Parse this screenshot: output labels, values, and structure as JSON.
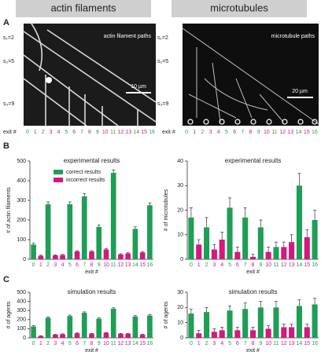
{
  "headers": [
    "actin filaments",
    "microtubules"
  ],
  "panel_labels": [
    "A",
    "B",
    "C"
  ],
  "images": [
    {
      "caption": "actin filament paths",
      "scale": "10 µm",
      "labels": [
        "s₁=2",
        "s₂=5",
        "s₃=9"
      ]
    },
    {
      "caption": "microtubule paths",
      "scale": "20 µm",
      "labels": [
        "s₁=2",
        "s₂=5",
        "s₃=9"
      ]
    }
  ],
  "exit_row": {
    "label": "exit #",
    "numbers": [
      "0",
      "1",
      "2",
      "3",
      "4",
      "5",
      "6",
      "7",
      "8",
      "9",
      "10",
      "11",
      "12",
      "13",
      "14",
      "15",
      "16"
    ]
  },
  "chart_data": [
    {
      "type": "bar",
      "title": "experimental results",
      "ylabel": "# of actin filaments",
      "xlabel": "exit #",
      "categories": [
        "0",
        "1",
        "2",
        "3",
        "4",
        "5",
        "6",
        "7",
        "8",
        "9",
        "10",
        "11",
        "12",
        "13",
        "14",
        "15",
        "16"
      ],
      "ylim": [
        0,
        500
      ],
      "yticks": [
        0,
        100,
        200,
        300,
        400,
        500
      ],
      "legend": "upper left",
      "series": [
        {
          "name": "correct results",
          "color": "#1f9e55",
          "values": [
            75,
            null,
            280,
            null,
            null,
            280,
            null,
            320,
            null,
            165,
            null,
            440,
            null,
            null,
            155,
            null,
            275
          ],
          "errors": [
            8,
            null,
            12,
            null,
            null,
            12,
            null,
            15,
            null,
            10,
            null,
            15,
            null,
            null,
            10,
            null,
            12
          ]
        },
        {
          "name": "incorrect results",
          "color": "#d4187e",
          "values": [
            null,
            18,
            null,
            20,
            22,
            null,
            40,
            null,
            40,
            null,
            50,
            null,
            25,
            30,
            null,
            35,
            null
          ],
          "errors": [
            null,
            3,
            null,
            3,
            3,
            null,
            4,
            null,
            4,
            null,
            5,
            null,
            3,
            4,
            null,
            4,
            null
          ]
        }
      ]
    },
    {
      "type": "bar",
      "title": "experimental results",
      "ylabel": "# of microtubules",
      "xlabel": "exit #",
      "categories": [
        "0",
        "1",
        "2",
        "3",
        "4",
        "5",
        "6",
        "7",
        "8",
        "9",
        "10",
        "11",
        "12",
        "13",
        "14",
        "15",
        "16"
      ],
      "ylim": [
        0,
        40
      ],
      "yticks": [
        0,
        10,
        20,
        30,
        40
      ],
      "series": [
        {
          "color": "#1f9e55",
          "values": [
            17,
            null,
            13,
            null,
            null,
            21,
            null,
            17,
            null,
            13,
            null,
            5,
            null,
            null,
            30,
            null,
            16
          ],
          "errors": [
            4,
            null,
            4,
            null,
            null,
            4,
            null,
            4,
            null,
            3,
            null,
            2,
            null,
            null,
            5,
            null,
            4
          ]
        },
        {
          "color": "#d4187e",
          "values": [
            null,
            6,
            null,
            4,
            8,
            null,
            3,
            null,
            1,
            null,
            3,
            null,
            5,
            7,
            null,
            9,
            null
          ],
          "errors": [
            null,
            2,
            null,
            2,
            3,
            null,
            2,
            null,
            1,
            null,
            2,
            null,
            2,
            3,
            null,
            3,
            null
          ]
        }
      ]
    },
    {
      "type": "bar",
      "title": "simulation results",
      "ylabel": "# of agents",
      "xlabel": "exit #",
      "categories": [
        "0",
        "1",
        "2",
        "3",
        "4",
        "5",
        "6",
        "7",
        "8",
        "9",
        "10",
        "11",
        "12",
        "13",
        "14",
        "15",
        "16"
      ],
      "ylim": [
        0,
        500
      ],
      "yticks": [
        0,
        100,
        200,
        300,
        400,
        500
      ],
      "series": [
        {
          "color": "#1f9e55",
          "values": [
            125,
            null,
            220,
            null,
            null,
            240,
            null,
            275,
            null,
            210,
            null,
            320,
            null,
            null,
            235,
            null,
            245
          ],
          "errors": [
            10,
            null,
            10,
            null,
            null,
            10,
            null,
            10,
            null,
            10,
            null,
            10,
            null,
            null,
            10,
            null,
            10
          ]
        },
        {
          "color": "#d4187e",
          "values": [
            null,
            20,
            null,
            35,
            40,
            null,
            50,
            null,
            45,
            null,
            55,
            null,
            45,
            45,
            null,
            35,
            null
          ],
          "errors": [
            null,
            4,
            null,
            4,
            4,
            null,
            4,
            null,
            4,
            null,
            4,
            null,
            4,
            4,
            null,
            4,
            null
          ]
        }
      ]
    },
    {
      "type": "bar",
      "title": "simulation results",
      "ylabel": "# of agents",
      "xlabel": "exit #",
      "categories": [
        "0",
        "1",
        "2",
        "3",
        "4",
        "5",
        "6",
        "7",
        "8",
        "9",
        "10",
        "11",
        "12",
        "13",
        "14",
        "15",
        "16"
      ],
      "ylim": [
        0,
        30
      ],
      "yticks": [
        0,
        10,
        20,
        30
      ],
      "series": [
        {
          "color": "#1f9e55",
          "values": [
            16,
            null,
            17,
            null,
            null,
            18,
            null,
            19,
            null,
            20,
            null,
            20,
            null,
            null,
            21,
            null,
            22
          ],
          "errors": [
            3,
            null,
            3,
            null,
            null,
            3,
            null,
            4,
            null,
            4,
            null,
            4,
            null,
            null,
            4,
            null,
            4
          ]
        },
        {
          "color": "#d4187e",
          "values": [
            null,
            3,
            null,
            4,
            5,
            null,
            5,
            null,
            5,
            null,
            6,
            null,
            7,
            7,
            null,
            7,
            null
          ],
          "errors": [
            null,
            2,
            null,
            2,
            2,
            null,
            2,
            null,
            2,
            null,
            2,
            null,
            2,
            2,
            null,
            2,
            null
          ]
        }
      ]
    }
  ]
}
